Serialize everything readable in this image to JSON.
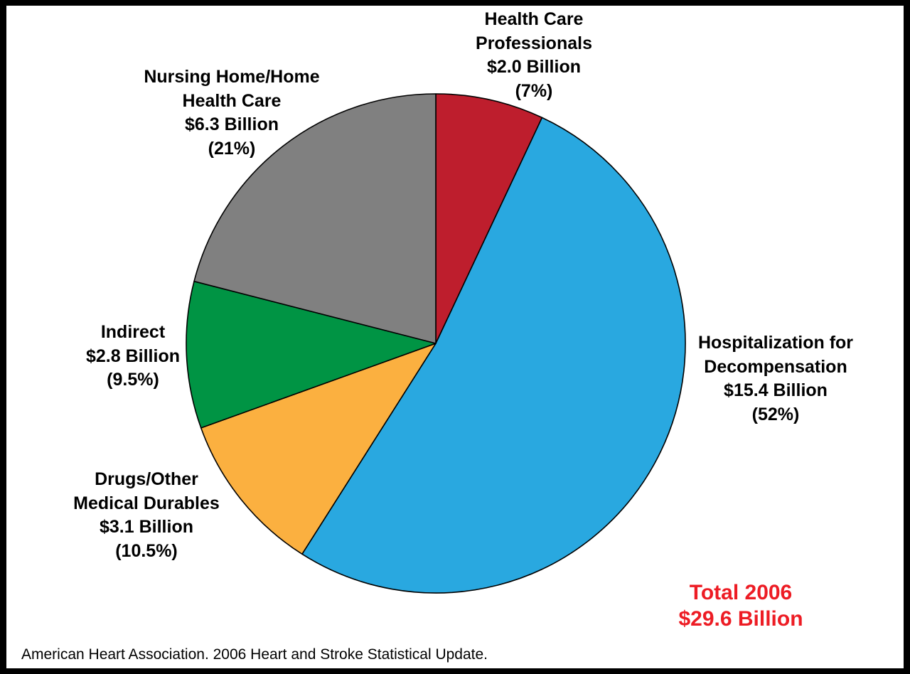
{
  "chart_data": {
    "type": "pie",
    "title": "Total 2006 $29.6 Billion",
    "total": {
      "line1": "Total 2006",
      "line2": "$29.6 Billion",
      "value": 29.6,
      "unit": "Billion"
    },
    "start_angle_deg": 0,
    "direction": "clockwise",
    "slices": [
      {
        "key": "hcp",
        "lines": [
          "Health Care",
          "Professionals",
          "$2.0 Billion",
          "(7%)"
        ],
        "value": 2.0,
        "percent": 7,
        "color": "#BE1E2D"
      },
      {
        "key": "hosp",
        "lines": [
          "Hospitalization for",
          "Decompensation",
          "$15.4 Billion",
          "(52%)"
        ],
        "value": 15.4,
        "percent": 52,
        "color": "#29A8E0"
      },
      {
        "key": "drugs",
        "lines": [
          "Drugs/Other",
          "Medical Durables",
          "$3.1 Billion",
          "(10.5%)"
        ],
        "value": 3.1,
        "percent": 10.5,
        "color": "#FBB040"
      },
      {
        "key": "indirect",
        "lines": [
          "Indirect",
          "$2.8 Billion",
          "(9.5%)"
        ],
        "value": 2.8,
        "percent": 9.5,
        "color": "#009444"
      },
      {
        "key": "nursing",
        "lines": [
          "Nursing Home/Home",
          "Health Care",
          "$6.3 Billion",
          "(21%)"
        ],
        "value": 6.3,
        "percent": 21,
        "color": "#808080"
      }
    ]
  },
  "total_color": "#ED1C24",
  "source_text": "American Heart Association. 2006 Heart and Stroke Statistical Update."
}
